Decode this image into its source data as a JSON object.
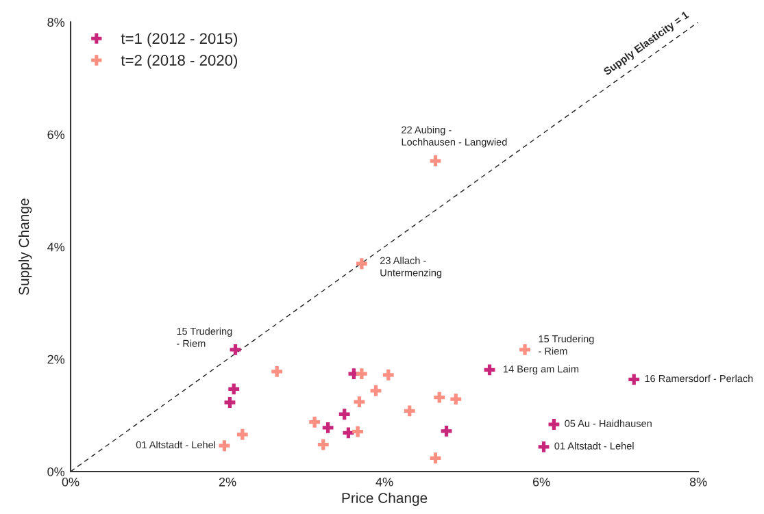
{
  "chart_data": {
    "type": "scatter",
    "xlabel": "Price Change",
    "ylabel": "Supply Change",
    "xlim": [
      0,
      8
    ],
    "ylim": [
      0,
      8
    ],
    "xticks": [
      {
        "value": 0,
        "label": "0%"
      },
      {
        "value": 2,
        "label": "2%"
      },
      {
        "value": 4,
        "label": "4%"
      },
      {
        "value": 6,
        "label": "6%"
      },
      {
        "value": 8,
        "label": "8%"
      }
    ],
    "yticks": [
      {
        "value": 0,
        "label": "0%"
      },
      {
        "value": 2,
        "label": "2%"
      },
      {
        "value": 4,
        "label": "4%"
      },
      {
        "value": 6,
        "label": "6%"
      },
      {
        "value": 8,
        "label": "8%"
      }
    ],
    "grid": false,
    "legend": "top left",
    "marker": "cross",
    "series": [
      {
        "name": "t=1 (2012 - 2015)",
        "color": "#c8267a",
        "x": [
          2.1,
          2.08,
          2.03,
          3.61,
          3.49,
          3.28,
          3.54,
          4.79,
          5.34,
          7.18,
          6.16,
          6.03
        ],
        "values": [
          2.17,
          1.47,
          1.23,
          1.74,
          1.02,
          0.78,
          0.69,
          0.72,
          1.81,
          1.64,
          0.84,
          0.44
        ]
      },
      {
        "name": "t=2 (2018 - 2020)",
        "color": "#fa8f82",
        "x": [
          4.65,
          3.71,
          5.79,
          2.63,
          3.71,
          4.05,
          3.89,
          3.68,
          4.7,
          4.91,
          4.32,
          3.11,
          2.19,
          3.66,
          3.22,
          1.96,
          4.65
        ],
        "values": [
          5.53,
          3.7,
          2.17,
          1.78,
          1.74,
          1.72,
          1.44,
          1.24,
          1.32,
          1.29,
          1.08,
          0.88,
          0.66,
          0.71,
          0.48,
          0.46,
          0.24
        ]
      },
      {
        "name": "Supply Elasticity = 1",
        "type": "line",
        "color": "#222222",
        "line_style": "dashed",
        "marker": "none",
        "x": [
          0,
          8
        ],
        "values": [
          0,
          8
        ]
      }
    ],
    "annotations": [
      {
        "text": "22 Aubing -\nLochhausen - Langwied",
        "x": 4.65,
        "y": 5.53
      },
      {
        "text": "23 Allach -\nUntermenzing",
        "x": 3.71,
        "y": 3.7
      },
      {
        "text": "15 Trudering\n- Riem",
        "x": 2.1,
        "y": 2.17
      },
      {
        "text": "15 Trudering\n- Riem",
        "x": 5.79,
        "y": 2.17
      },
      {
        "text": "14 Berg am Laim",
        "x": 5.34,
        "y": 1.81
      },
      {
        "text": "16 Ramersdorf - Perlach",
        "x": 7.18,
        "y": 1.64
      },
      {
        "text": "05 Au - Haidhausen",
        "x": 6.16,
        "y": 0.84
      },
      {
        "text": "01 Altstadt - Lehel",
        "x": 6.03,
        "y": 0.44
      },
      {
        "text": "01 Altstadt - Lehel",
        "x": 1.96,
        "y": 0.46
      }
    ]
  }
}
